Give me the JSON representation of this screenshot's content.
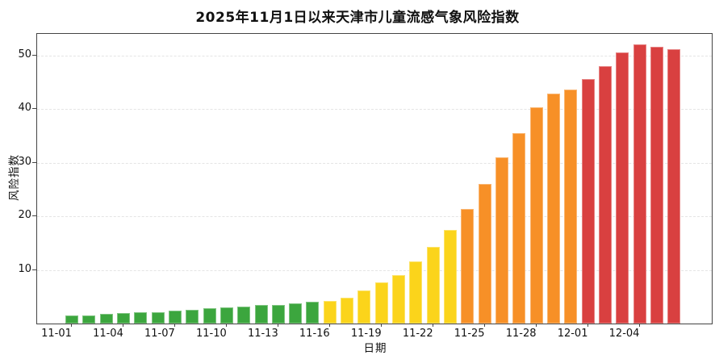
{
  "chart_data": {
    "type": "bar",
    "title": "2025年11月1日以来天津市儿童流感气象风险指数",
    "xlabel": "日期",
    "ylabel": "风险指数",
    "ylim": [
      0,
      54
    ],
    "grid": "horizontal-dashed",
    "legend_position": "none",
    "y_ticks": [
      10,
      20,
      30,
      40,
      50
    ],
    "x_tick_every": 3,
    "x_tick_labels": [
      "11-01",
      "11-04",
      "11-07",
      "11-10",
      "11-13",
      "11-16",
      "11-19",
      "11-22",
      "11-25",
      "11-28",
      "12-01",
      "12-04"
    ],
    "categories": [
      "11-01",
      "11-02",
      "11-03",
      "11-04",
      "11-05",
      "11-06",
      "11-07",
      "11-08",
      "11-09",
      "11-10",
      "11-11",
      "11-12",
      "11-13",
      "11-14",
      "11-15",
      "11-16",
      "11-17",
      "11-18",
      "11-19",
      "11-20",
      "11-21",
      "11-22",
      "11-23",
      "11-24",
      "11-25",
      "11-26",
      "11-27",
      "11-28",
      "11-29",
      "11-30",
      "12-01",
      "12-02",
      "12-03",
      "12-04",
      "12-05",
      "12-06"
    ],
    "values": [
      1.5,
      1.5,
      1.8,
      1.9,
      2.1,
      2.1,
      2.4,
      2.6,
      2.8,
      3.0,
      3.2,
      3.4,
      3.5,
      3.8,
      4.0,
      4.2,
      4.8,
      6.1,
      7.6,
      9.1,
      11.6,
      14.3,
      17.5,
      21.3,
      26.0,
      31.0,
      35.5,
      40.3,
      42.9,
      43.6,
      45.6,
      48.0,
      50.5,
      52.0,
      51.6,
      51.2
    ],
    "color_groups": [
      {
        "label": "green",
        "color": "#3CA63E",
        "start_index": 0,
        "end_index": 14
      },
      {
        "label": "yellow",
        "color": "#FBD41B",
        "start_index": 15,
        "end_index": 22
      },
      {
        "label": "orange",
        "color": "#F79027",
        "start_index": 23,
        "end_index": 29
      },
      {
        "label": "red",
        "color": "#D94040",
        "start_index": 30,
        "end_index": 35
      }
    ],
    "colors": {
      "axis": "#444444",
      "grid": "#e4e4e4",
      "text": "#111111",
      "background": "#ffffff"
    }
  }
}
